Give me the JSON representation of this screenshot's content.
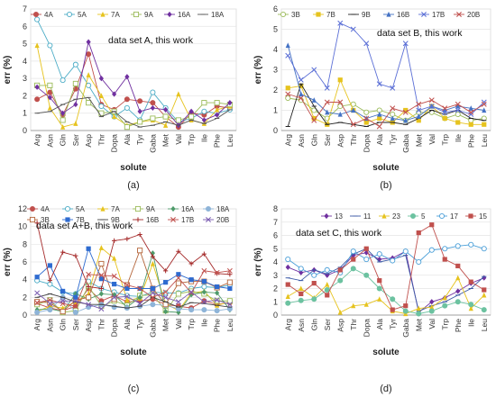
{
  "solutes": [
    "Arg",
    "Asn",
    "Gln",
    "Ser",
    "Asp",
    "Thr",
    "Dopa",
    "Ala",
    "Tyr",
    "Gaba",
    "Met",
    "Val",
    "Trp",
    "Ile",
    "Phe",
    "Leu"
  ],
  "charts": [
    {
      "id": "a",
      "type": "line",
      "caption": "(a)",
      "annotation": "data set A, this work",
      "xlabel": "solute",
      "ylabel": "err (%)",
      "ylim": [
        0,
        7
      ],
      "yticks": [
        0,
        1,
        2,
        3,
        4,
        5,
        6,
        7
      ],
      "categories": [
        "Arg",
        "Asn",
        "Gln",
        "Ser",
        "Asp",
        "Thr",
        "Dopa",
        "Ala",
        "Tyr",
        "Gaba",
        "Met",
        "Val",
        "Trp",
        "Ile",
        "Phe",
        "Leu"
      ],
      "series": [
        {
          "name": "4A",
          "color": "#c0504d",
          "marker": "circle",
          "values": [
            1.8,
            2.2,
            0.9,
            2.4,
            4.4,
            1.5,
            1.2,
            1.8,
            1.7,
            1.6,
            0.8,
            0.2,
            1.0,
            0.9,
            1.4,
            1.3
          ]
        },
        {
          "name": "5A",
          "color": "#4bacc6",
          "marker": "circle-open",
          "values": [
            6.4,
            4.9,
            2.9,
            3.8,
            2.6,
            1.4,
            0.8,
            1.3,
            0.6,
            2.2,
            1.3,
            0.5,
            0.7,
            1.1,
            1.0,
            1.2
          ]
        },
        {
          "name": "7A",
          "color": "#e6c31e",
          "marker": "triangle",
          "values": [
            4.9,
            1.3,
            0.2,
            0.4,
            3.2,
            2.0,
            0.8,
            0.3,
            0.5,
            0.6,
            0.3,
            2.1,
            0.6,
            0.4,
            1.2,
            1.4
          ]
        },
        {
          "name": "9A",
          "color": "#9bbb59",
          "marker": "square-open",
          "values": [
            2.6,
            2.6,
            0.6,
            2.7,
            1.6,
            1.0,
            1.1,
            0.2,
            0.5,
            0.7,
            0.8,
            0.6,
            0.8,
            1.6,
            1.6,
            1.5
          ]
        },
        {
          "name": "16A",
          "color": "#7030a0",
          "marker": "diamond",
          "values": [
            2.5,
            1.9,
            1.0,
            1.5,
            5.1,
            3.0,
            2.1,
            3.1,
            1.1,
            1.3,
            1.2,
            0.3,
            1.1,
            0.6,
            0.9,
            1.6
          ]
        },
        {
          "name": "18A",
          "color": "#555555",
          "marker": "line",
          "values": [
            1.0,
            1.1,
            1.5,
            1.8,
            1.9,
            0.8,
            1.1,
            0.5,
            0.2,
            0.3,
            0.5,
            0.3,
            0.6,
            0.4,
            0.7,
            1.2
          ]
        }
      ]
    },
    {
      "id": "b",
      "type": "line",
      "caption": "(b)",
      "annotation": "data set B, this work",
      "xlabel": "solute",
      "ylabel": "err (%)",
      "ylim": [
        0,
        6
      ],
      "yticks": [
        0,
        1,
        2,
        3,
        4,
        5,
        6
      ],
      "categories": [
        "Arg",
        "Asn",
        "Gln",
        "Ser",
        "Asp",
        "Thr",
        "Dopa",
        "Ala",
        "Tyr",
        "Gaba",
        "Met",
        "Val",
        "Trp",
        "Ile",
        "Phe",
        "Leu"
      ],
      "series": [
        {
          "name": "3B",
          "color": "#9bbb59",
          "marker": "circle-open",
          "values": [
            1.6,
            1.5,
            1.0,
            0.6,
            1.2,
            1.3,
            0.9,
            1.0,
            0.8,
            0.5,
            0.9,
            0.9,
            0.6,
            0.8,
            0.5,
            0.6
          ]
        },
        {
          "name": "7B",
          "color": "#e6c31e",
          "marker": "square",
          "values": [
            2.1,
            2.2,
            0.6,
            0.3,
            2.5,
            1.0,
            0.4,
            0.6,
            0.4,
            1.0,
            0.5,
            1.2,
            0.6,
            0.4,
            0.3,
            0.3
          ]
        },
        {
          "name": "9B",
          "color": "#222222",
          "marker": "line",
          "values": [
            0.2,
            2.3,
            1.2,
            0.3,
            0.4,
            0.3,
            0.2,
            0.4,
            0.4,
            0.3,
            0.6,
            1.0,
            0.8,
            1.0,
            0.6,
            0.5
          ]
        },
        {
          "name": "16B",
          "color": "#4472c4",
          "marker": "triangle",
          "values": [
            4.2,
            1.8,
            1.5,
            0.9,
            0.8,
            1.0,
            0.6,
            0.8,
            0.6,
            0.5,
            0.7,
            1.2,
            1.0,
            1.2,
            1.1,
            1.0
          ]
        },
        {
          "name": "17B",
          "color": "#5b6fd6",
          "marker": "x",
          "values": [
            3.7,
            2.5,
            3.0,
            2.1,
            5.3,
            5.0,
            4.3,
            2.3,
            2.1,
            4.3,
            1.0,
            1.2,
            0.9,
            1.0,
            0.8,
            1.4
          ]
        },
        {
          "name": "20B",
          "color": "#c0504d",
          "marker": "x",
          "values": [
            1.8,
            1.6,
            0.5,
            1.4,
            1.4,
            0.3,
            0.6,
            0.2,
            1.1,
            0.9,
            1.3,
            1.5,
            1.1,
            1.3,
            0.9,
            1.3
          ]
        }
      ]
    },
    {
      "id": "c",
      "type": "line",
      "caption": "(c)",
      "annotation": "data set A+B, this work",
      "xlabel": "solute",
      "ylabel": "err (%)",
      "ylim": [
        0,
        12
      ],
      "yticks": [
        0,
        2,
        4,
        6,
        8,
        10,
        12
      ],
      "categories": [
        "Arg",
        "Asn",
        "Gln",
        "Ser",
        "Asp",
        "Thr",
        "Dopa",
        "Ala",
        "Tyr",
        "Gaba",
        "Met",
        "Val",
        "Trp",
        "Ile",
        "Phe",
        "Leu"
      ],
      "series": [
        {
          "name": "4A",
          "color": "#c0504d",
          "marker": "circle",
          "values": [
            1.3,
            0.8,
            0.5,
            1.0,
            3.0,
            1.6,
            2.2,
            1.5,
            1.6,
            1.8,
            1.2,
            1.0,
            0.8,
            1.6,
            1.2,
            1.4
          ]
        },
        {
          "name": "5A",
          "color": "#4bacc6",
          "marker": "circle-open",
          "values": [
            3.9,
            3.5,
            2.6,
            2.4,
            3.8,
            3.0,
            2.6,
            2.2,
            2.1,
            2.6,
            2.5,
            2.5,
            3.0,
            3.2,
            3.1,
            3.4
          ]
        },
        {
          "name": "7A",
          "color": "#e6c31e",
          "marker": "triangle",
          "values": [
            0.4,
            1.0,
            0.8,
            1.5,
            2.4,
            7.6,
            6.4,
            1.7,
            1.9,
            5.8,
            1.3,
            0.5,
            2.5,
            2.7,
            1.1,
            1.5
          ]
        },
        {
          "name": "9A",
          "color": "#9bbb59",
          "marker": "square-open",
          "values": [
            1.2,
            1.7,
            0.3,
            0.5,
            3.3,
            1.0,
            1.6,
            1.1,
            2.2,
            2.3,
            0.5,
            2.4,
            2.7,
            2.4,
            1.6,
            1.6
          ]
        },
        {
          "name": "16A",
          "color": "#4e9a6a",
          "marker": "diamond",
          "values": [
            0.6,
            0.7,
            0.4,
            2.4,
            1.8,
            2.4,
            2.3,
            0.9,
            2.0,
            7.0,
            0.4,
            0.3,
            2.3,
            2.6,
            2.5,
            0.6
          ]
        },
        {
          "name": "18A",
          "color": "#8eb4d8",
          "marker": "circle",
          "values": [
            0.3,
            0.6,
            2.0,
            0.3,
            0.9,
            1.2,
            0.9,
            0.8,
            1.0,
            1.2,
            1.1,
            0.7,
            0.6,
            0.6,
            0.5,
            0.7
          ]
        },
        {
          "name": "3B",
          "color": "#b4653a",
          "marker": "square-open",
          "values": [
            1.5,
            1.4,
            0.4,
            1.7,
            2.0,
            5.8,
            1.8,
            3.4,
            7.3,
            3.0,
            1.2,
            3.6,
            3.8,
            3.8,
            3.1,
            3.7
          ]
        },
        {
          "name": "7B",
          "color": "#2e6bd0",
          "marker": "square",
          "values": [
            4.3,
            5.6,
            2.7,
            2.0,
            7.5,
            4.1,
            3.5,
            3.0,
            3.0,
            3.0,
            3.7,
            4.6,
            4.0,
            3.8,
            3.2,
            3.0
          ]
        },
        {
          "name": "9B",
          "color": "#444444",
          "marker": "line",
          "values": [
            2.0,
            2.4,
            2.0,
            1.5,
            1.2,
            1.2,
            1.0,
            0.8,
            1.0,
            2.0,
            1.5,
            0.9,
            1.4,
            1.3,
            1.1,
            0.9
          ]
        },
        {
          "name": "16B",
          "color": "#a52a2a",
          "marker": "plus",
          "values": [
            10.4,
            3.9,
            7.1,
            6.7,
            3.2,
            3.0,
            8.4,
            8.6,
            9.1,
            6.6,
            5.0,
            7.2,
            5.8,
            6.9,
            4.7,
            4.6
          ]
        },
        {
          "name": "17B",
          "color": "#c0504d",
          "marker": "x",
          "values": [
            1.4,
            1.7,
            1.3,
            1.0,
            4.6,
            4.5,
            4.4,
            3.4,
            3.0,
            2.0,
            2.6,
            4.2,
            2.5,
            5.0,
            4.8,
            5.0
          ]
        },
        {
          "name": "20B",
          "color": "#7a5bb0",
          "marker": "x",
          "values": [
            2.5,
            1.3,
            1.6,
            1.6,
            1.2,
            0.7,
            2.0,
            2.1,
            1.3,
            2.5,
            2.0,
            1.5,
            2.6,
            1.5,
            1.7,
            1.2
          ]
        }
      ]
    },
    {
      "id": "d",
      "type": "line",
      "caption": "(d)",
      "annotation": "data set C, this work",
      "xlabel": "solute",
      "ylabel": "err (%)",
      "ylim": [
        0,
        8
      ],
      "yticks": [
        0,
        1,
        2,
        3,
        4,
        5,
        6,
        7,
        8
      ],
      "categories": [
        "Arg",
        "Asn",
        "Gln",
        "Ser",
        "Asp",
        "Thr",
        "Dopa",
        "Ala",
        "Tyr",
        "Gaba",
        "Met",
        "Val",
        "Trp",
        "Phe",
        "Ile",
        "Leu"
      ],
      "series": [
        {
          "name": "13",
          "color": "#7030a0",
          "marker": "diamond",
          "values": [
            3.6,
            3.2,
            3.4,
            3.0,
            3.4,
            4.5,
            4.7,
            4.2,
            4.3,
            4.8,
            0.2,
            1.0,
            1.3,
            1.8,
            2.4,
            2.8
          ]
        },
        {
          "name": "11",
          "color": "#3c5aa6",
          "marker": "line",
          "values": [
            2.8,
            2.6,
            3.4,
            3.1,
            3.6,
            4.6,
            5.0,
            4.0,
            4.2,
            4.5,
            0.3,
            0.7,
            1.0,
            1.5,
            2.0,
            2.9
          ]
        },
        {
          "name": "23",
          "color": "#e6c31e",
          "marker": "triangle",
          "values": [
            1.4,
            2.0,
            1.3,
            2.3,
            0.2,
            0.7,
            0.8,
            1.2,
            0.3,
            0.1,
            0.5,
            0.6,
            1.3,
            2.8,
            0.5,
            1.5
          ]
        },
        {
          "name": "5",
          "color": "#6cc2a0",
          "marker": "circle",
          "values": [
            0.9,
            1.1,
            1.2,
            1.9,
            2.6,
            3.5,
            3.0,
            2.0,
            1.2,
            0.3,
            0.1,
            0.3,
            0.7,
            1.0,
            0.8,
            0.4
          ]
        },
        {
          "name": "17",
          "color": "#4a9fd8",
          "marker": "circle-open",
          "values": [
            4.2,
            3.5,
            3.0,
            3.4,
            3.2,
            4.8,
            4.2,
            4.6,
            4.1,
            4.8,
            4.0,
            4.9,
            5.0,
            5.2,
            5.3,
            5.0
          ]
        },
        {
          "name": "15",
          "color": "#c0504d",
          "marker": "square",
          "values": [
            2.3,
            1.6,
            2.4,
            1.5,
            3.4,
            4.2,
            5.0,
            2.6,
            0.4,
            0.7,
            6.2,
            6.8,
            4.2,
            3.7,
            2.5,
            1.9
          ]
        }
      ]
    }
  ]
}
